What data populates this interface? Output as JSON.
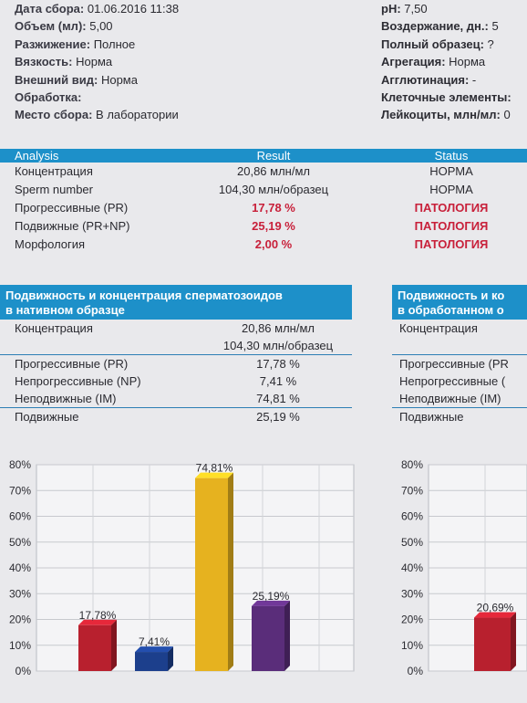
{
  "info_left": [
    {
      "key": "Дата сбора",
      "value": "01.06.2016 11:38"
    },
    {
      "key": "Объем (мл)",
      "value": "5,00"
    },
    {
      "key": "Разжижение",
      "value": "Полное"
    },
    {
      "key": "Вязкость",
      "value": "Норма"
    },
    {
      "key": "Внешний вид",
      "value": "Норма"
    },
    {
      "key": "Обработка",
      "value": ""
    },
    {
      "key": "Место сбора",
      "value": "В лаборатории"
    }
  ],
  "info_right": [
    {
      "key": "pH",
      "value": "7,50"
    },
    {
      "key": "Воздержание, дн.",
      "value": "5"
    },
    {
      "key": "Полный образец",
      "value": "?"
    },
    {
      "key": "Агрегация",
      "value": "Норма"
    },
    {
      "key": "Агглютинация",
      "value": "-"
    },
    {
      "key": "Клеточные элементы",
      "value": ""
    },
    {
      "key": "Лейкоциты, млн/мл",
      "value": "0"
    }
  ],
  "analysis": {
    "headers": [
      "Analysis",
      "Result",
      "Status"
    ],
    "rows": [
      {
        "name": "Концентрация",
        "result": "20,86 млн/мл",
        "status": "НОРМА",
        "flag": false
      },
      {
        "name": "Sperm number",
        "result": "104,30 млн/образец",
        "status": "НОРМА",
        "flag": false
      },
      {
        "name": "Прогрессивные (PR)",
        "result": "17,78 %",
        "status": "ПАТОЛОГИЯ",
        "flag": true
      },
      {
        "name": "Подвижные (PR+NP)",
        "result": "25,19 %",
        "status": "ПАТОЛОГИЯ",
        "flag": true
      },
      {
        "name": "Морфология",
        "result": "2,00 %",
        "status": "ПАТОЛОГИЯ",
        "flag": true
      }
    ]
  },
  "motility_native": {
    "title_line1": "Подвижность и концентрация сперматозоидов",
    "title_line2": "в нативном образце",
    "rows": [
      {
        "name": "Концентрация",
        "value": "20,86 млн/мл"
      },
      {
        "name": "",
        "value": "104,30 млн/образец"
      },
      {
        "name": "Прогрессивные (PR)",
        "value": "17,78 %"
      },
      {
        "name": "Непрогрессивные (NP)",
        "value": "7,41 %"
      },
      {
        "name": "Неподвижные (IM)",
        "value": "74,81 %"
      },
      {
        "name": "Подвижные",
        "value": "25,19 %"
      }
    ]
  },
  "motility_processed": {
    "title_line1": "Подвижность и ко",
    "title_line2": "в обработанном о",
    "rows": [
      {
        "name": "Концентрация"
      },
      {
        "name": ""
      },
      {
        "name": "Прогрессивные (PR"
      },
      {
        "name": "Непрогрессивные ("
      },
      {
        "name": "Неподвижные (IM)"
      },
      {
        "name": "Подвижные"
      }
    ]
  },
  "chart_data": [
    {
      "type": "bar",
      "ylim": [
        0,
        80
      ],
      "yticks": [
        "0%",
        "10%",
        "20%",
        "30%",
        "40%",
        "50%",
        "60%",
        "70%",
        "80%"
      ],
      "values": [
        17.78,
        7.41,
        74.81,
        25.19
      ],
      "labels": [
        "17,78%",
        "7,41%",
        "74,81%",
        "25,19%"
      ],
      "colors": [
        "#b8202e",
        "#1c3f8c",
        "#e6b21f",
        "#5a2d7a"
      ]
    },
    {
      "type": "bar",
      "ylim": [
        0,
        80
      ],
      "yticks": [
        "0%",
        "10%",
        "20%",
        "30%",
        "40%",
        "50%",
        "60%",
        "70%",
        "80%"
      ],
      "values": [
        20.69
      ],
      "labels": [
        "20,69%"
      ],
      "colors": [
        "#b8202e"
      ]
    }
  ],
  "colors": {
    "header_blue": "#1d90c9",
    "alert_red": "#c8203a"
  }
}
